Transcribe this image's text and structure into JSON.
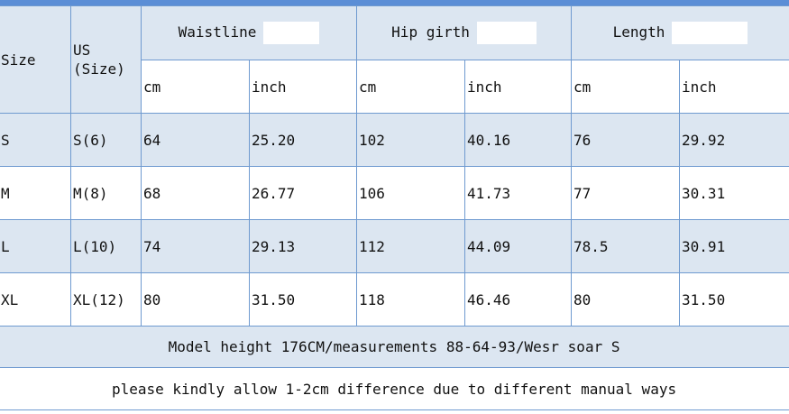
{
  "header": {
    "size": "Size",
    "us_line1": "US",
    "us_line2": "(Size)",
    "waistline": "Waistline",
    "hip_girth": "Hip girth",
    "length": "Length"
  },
  "units": [
    "cm",
    "inch",
    "cm",
    "inch",
    "cm",
    "inch"
  ],
  "rows": [
    {
      "size": "S",
      "us": "S(6)",
      "waist_cm": "64",
      "waist_in": "25.20",
      "hip_cm": "102",
      "hip_in": "40.16",
      "len_cm": "76",
      "len_in": "29.92"
    },
    {
      "size": "M",
      "us": "M(8)",
      "waist_cm": "68",
      "waist_in": "26.77",
      "hip_cm": "106",
      "hip_in": "41.73",
      "len_cm": "77",
      "len_in": "30.31"
    },
    {
      "size": "L",
      "us": "L(10)",
      "waist_cm": "74",
      "waist_in": "29.13",
      "hip_cm": "112",
      "hip_in": "44.09",
      "len_cm": "78.5",
      "len_in": "30.91"
    },
    {
      "size": "XL",
      "us": "XL(12)",
      "waist_cm": "80",
      "waist_in": "31.50",
      "hip_cm": "118",
      "hip_in": "46.46",
      "len_cm": "80",
      "len_in": "31.50"
    }
  ],
  "notes": {
    "model": "Model height 176CM/measurements 88-64-93/Wesr soar S",
    "difference": "please kindly allow 1-2cm difference due to different manual ways"
  },
  "colors": {
    "row_blue": "#dce6f1",
    "border": "#6f9ad0",
    "top_bar": "#5b8ed6"
  }
}
